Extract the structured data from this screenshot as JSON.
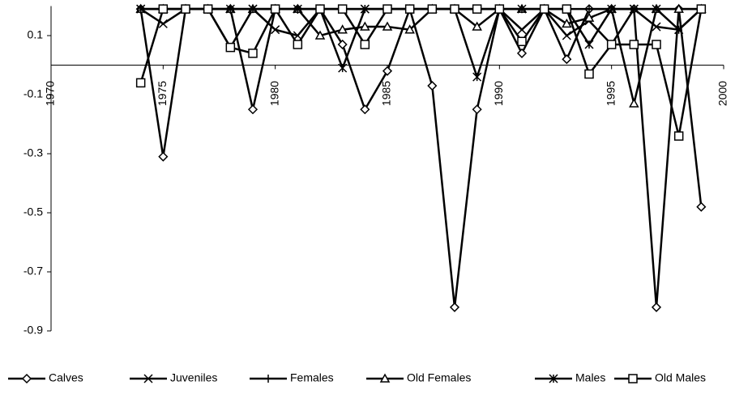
{
  "chart_data": {
    "type": "line",
    "x": [
      1974,
      1975,
      1976,
      1977,
      1978,
      1979,
      1980,
      1981,
      1982,
      1983,
      1984,
      1985,
      1986,
      1987,
      1988,
      1989,
      1990,
      1991,
      1992,
      1993,
      1994,
      1995,
      1996,
      1997,
      1998,
      1999
    ],
    "xlim": [
      1970,
      2000
    ],
    "xticks": [
      1970,
      1975,
      1980,
      1985,
      1990,
      1995,
      2000
    ],
    "ylim": [
      -0.9,
      0.2
    ],
    "yticks": [
      0.1,
      -0.1,
      -0.3,
      -0.5,
      -0.7,
      -0.9
    ],
    "legend": "bottom",
    "series": [
      {
        "name": "Calves",
        "color": "#000000",
        "marker": "diamond",
        "values": [
          0.19,
          -0.31,
          0.19,
          0.19,
          0.19,
          -0.15,
          0.19,
          0.19,
          0.19,
          0.07,
          -0.15,
          -0.02,
          0.19,
          -0.07,
          -0.82,
          -0.15,
          0.19,
          0.04,
          0.19,
          0.02,
          0.19,
          0.19,
          0.19,
          -0.82,
          0.19,
          -0.48
        ]
      },
      {
        "name": "Juveniles",
        "color": "#000000",
        "marker": "x",
        "values": [
          0.19,
          0.14,
          0.19,
          0.19,
          0.06,
          0.19,
          0.12,
          0.1,
          0.19,
          0.19,
          0.19,
          0.19,
          0.19,
          0.19,
          0.19,
          0.19,
          0.19,
          0.12,
          0.19,
          0.1,
          0.15,
          0.07,
          0.19,
          0.13,
          0.12,
          0.19
        ]
      },
      {
        "name": "Females",
        "color": "#000000",
        "marker": "plus",
        "values": [
          0.19,
          0.19,
          0.19,
          0.19,
          0.19,
          0.19,
          0.19,
          0.19,
          0.19,
          0.19,
          0.19,
          0.19,
          0.19,
          0.19,
          0.19,
          0.19,
          0.19,
          0.19,
          0.19,
          0.19,
          0.19,
          0.19,
          0.19,
          0.19,
          0.19,
          0.19
        ]
      },
      {
        "name": "Old Females",
        "color": "#000000",
        "marker": "triangle",
        "values": [
          0.19,
          0.19,
          0.19,
          0.19,
          0.19,
          0.19,
          0.19,
          0.19,
          0.1,
          0.12,
          0.13,
          0.13,
          0.12,
          0.19,
          0.19,
          0.13,
          0.19,
          0.19,
          0.19,
          0.14,
          0.16,
          0.19,
          -0.13,
          0.19,
          0.19,
          0.19
        ]
      },
      {
        "name": "Males",
        "color": "#000000",
        "marker": "asterisk",
        "values": [
          0.19,
          0.19,
          0.19,
          0.19,
          0.19,
          0.19,
          0.19,
          0.19,
          0.19,
          -0.01,
          0.19,
          0.19,
          0.19,
          0.19,
          0.19,
          -0.04,
          0.19,
          0.19,
          0.19,
          0.19,
          0.07,
          0.19,
          0.19,
          0.19,
          0.12,
          0.19
        ]
      },
      {
        "name": "Old Males",
        "color": "#000000",
        "marker": "square",
        "values": [
          -0.06,
          0.19,
          0.19,
          0.19,
          0.06,
          0.04,
          0.19,
          0.07,
          0.19,
          0.19,
          0.07,
          0.19,
          0.19,
          0.19,
          0.19,
          0.19,
          0.19,
          0.08,
          0.19,
          0.19,
          -0.03,
          0.07,
          0.07,
          0.07,
          -0.24,
          0.19
        ]
      }
    ]
  }
}
